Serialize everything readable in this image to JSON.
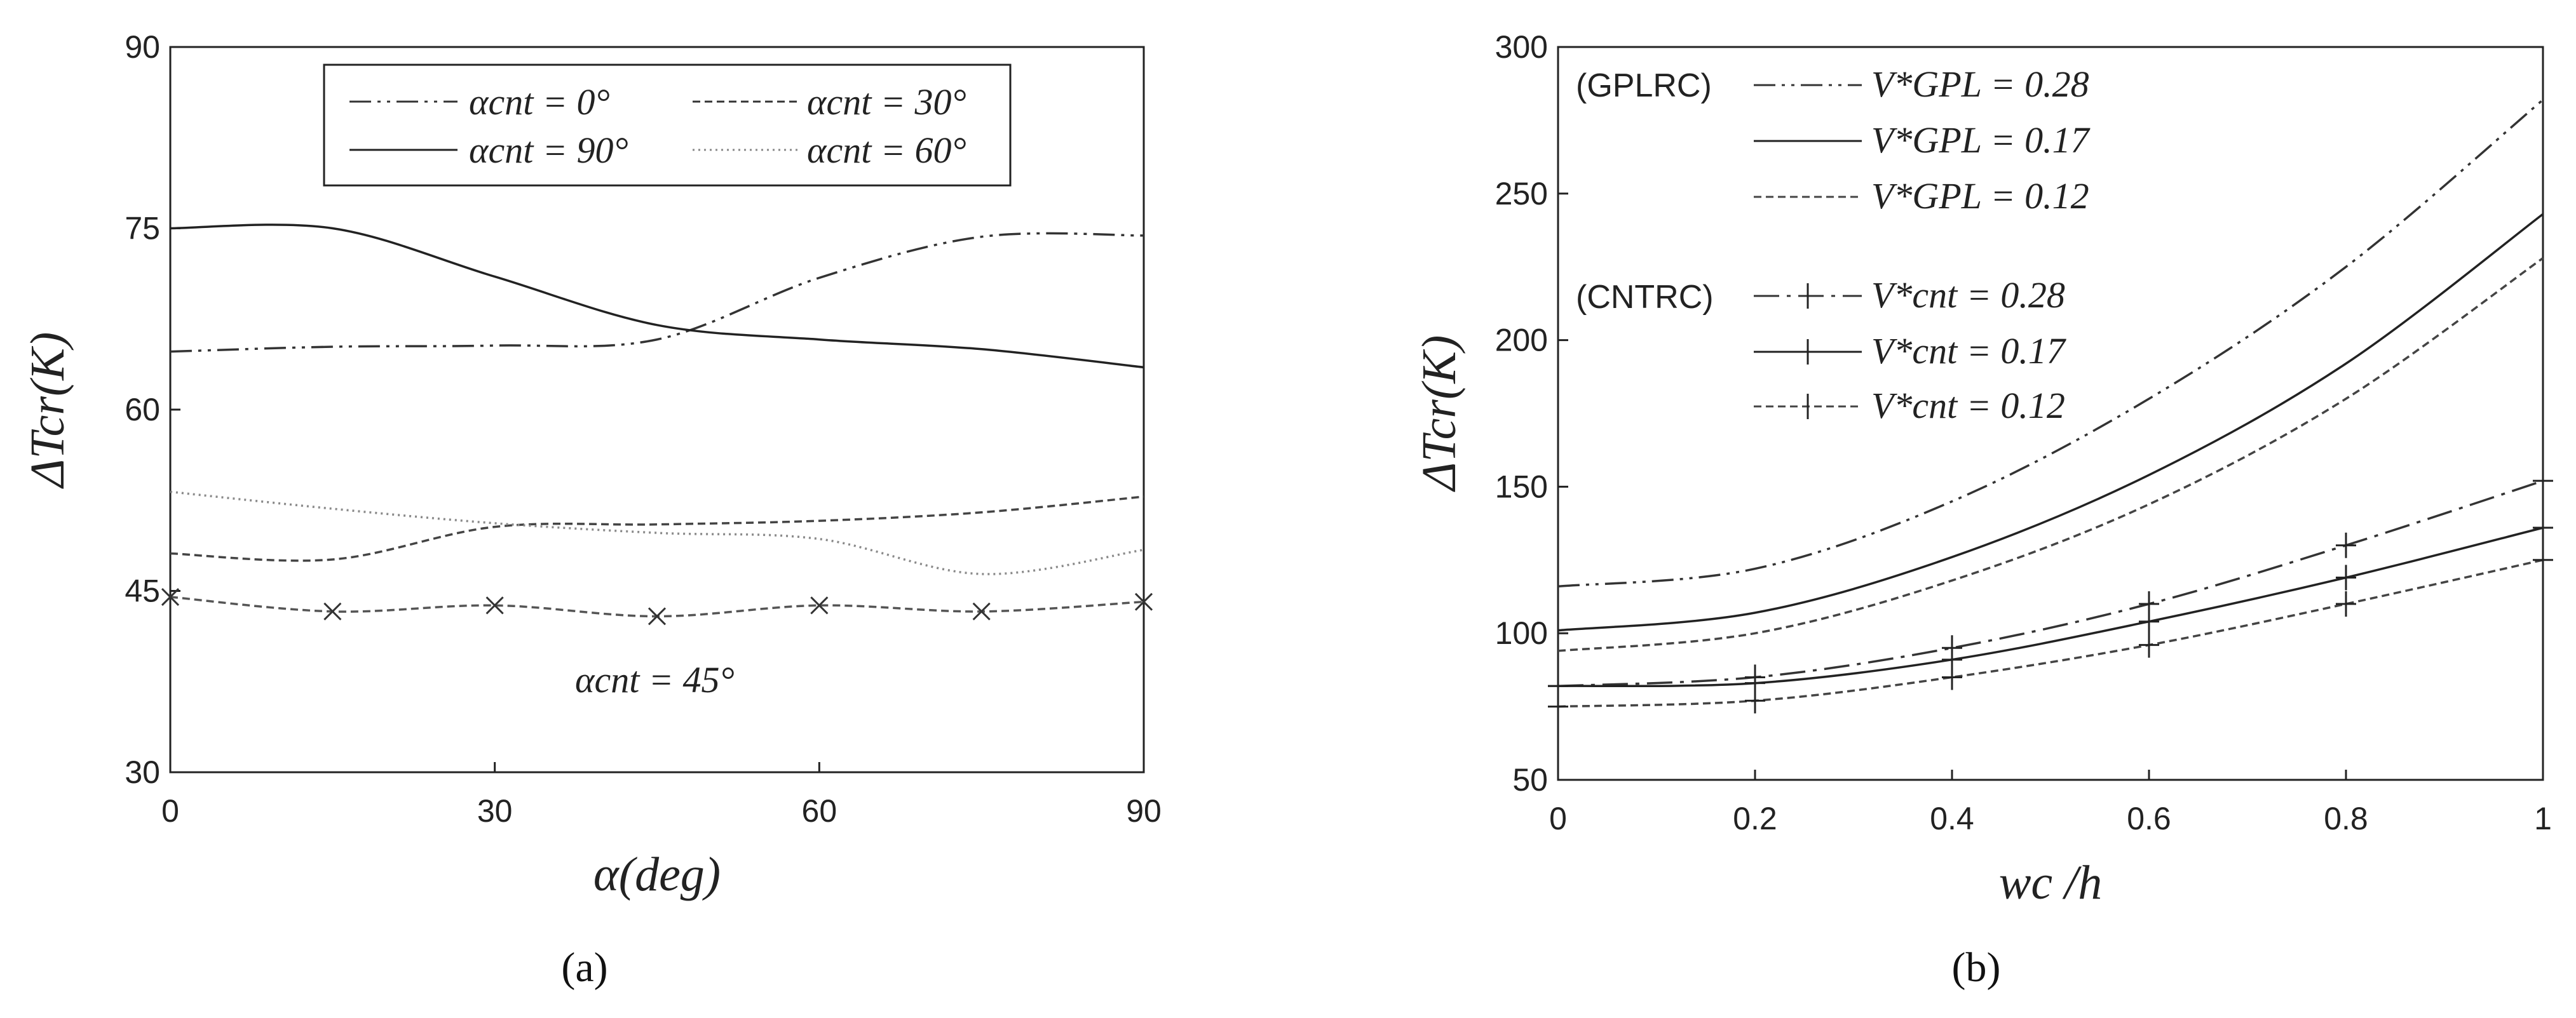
{
  "chart_data": [
    {
      "type": "line",
      "panel": "a",
      "caption": "(a)",
      "xlabel": "α(deg)",
      "ylabel": "ΔTcr(K)",
      "xlim": [
        0,
        90
      ],
      "ylim": [
        30,
        90
      ],
      "xticks": [
        0,
        30,
        60,
        90
      ],
      "yticks": [
        30,
        45,
        60,
        75,
        90
      ],
      "x": [
        0,
        15,
        30,
        45,
        60,
        75,
        90
      ],
      "series": [
        {
          "name": "αcnt = 0°",
          "style": "dashdotdot",
          "values": [
            64.8,
            65.2,
            65.3,
            65.8,
            70.9,
            74.3,
            74.4
          ]
        },
        {
          "name": "αcnt = 90°",
          "style": "solid",
          "values": [
            75.0,
            75.0,
            71.0,
            67.0,
            65.8,
            65.0,
            63.5
          ]
        },
        {
          "name": "αcnt = 30°",
          "style": "dashed",
          "values": [
            48.1,
            47.6,
            50.3,
            50.5,
            50.8,
            51.5,
            52.8
          ]
        },
        {
          "name": "αcnt = 60°",
          "style": "dotted",
          "values": [
            53.2,
            51.8,
            50.6,
            49.8,
            49.3,
            46.4,
            48.4
          ]
        },
        {
          "name": "αcnt = 45°",
          "style": "dashed-x",
          "values": [
            44.5,
            43.3,
            43.8,
            42.9,
            43.8,
            43.3,
            44.1
          ]
        }
      ],
      "legend": [
        "αcnt = 0°",
        "αcnt = 30°",
        "αcnt = 90°",
        "αcnt = 60°"
      ],
      "annotation": "αcnt = 45°"
    },
    {
      "type": "line",
      "panel": "b",
      "caption": "(b)",
      "xlabel": "wc /h",
      "ylabel": "ΔTcr(K)",
      "xlim": [
        0,
        1
      ],
      "ylim": [
        50,
        300
      ],
      "xticks": [
        "0",
        "0.2",
        "0.4",
        "0.6",
        "0.8",
        "1"
      ],
      "yticks": [
        50,
        100,
        150,
        200,
        250,
        300
      ],
      "x": [
        0,
        0.2,
        0.4,
        0.6,
        0.8,
        1.0
      ],
      "groups": [
        "(GPLRC)",
        "(CNTRC)"
      ],
      "series": [
        {
          "name": "V*GPL = 0.28",
          "group": "GPLRC",
          "style": "dashdotdot",
          "values": [
            116,
            122,
            145,
            180,
            225,
            282
          ]
        },
        {
          "name": "V*GPL = 0.17",
          "group": "GPLRC",
          "style": "solid",
          "values": [
            101,
            107,
            126,
            154,
            192,
            243
          ]
        },
        {
          "name": "V*GPL = 0.12",
          "group": "GPLRC",
          "style": "dashed",
          "values": [
            94,
            100,
            118,
            144,
            180,
            228
          ]
        },
        {
          "name": "V*cnt = 0.28",
          "group": "CNTRC",
          "style": "dashdot-plus",
          "values": [
            82,
            85,
            95,
            110,
            130,
            152
          ]
        },
        {
          "name": "V*cnt = 0.17",
          "group": "CNTRC",
          "style": "solid-plus",
          "values": [
            82,
            83,
            91,
            104,
            119,
            136
          ]
        },
        {
          "name": "V*cnt = 0.12",
          "group": "CNTRC",
          "style": "dashed-plus",
          "values": [
            75,
            77,
            85,
            96,
            110,
            125
          ]
        }
      ]
    }
  ]
}
